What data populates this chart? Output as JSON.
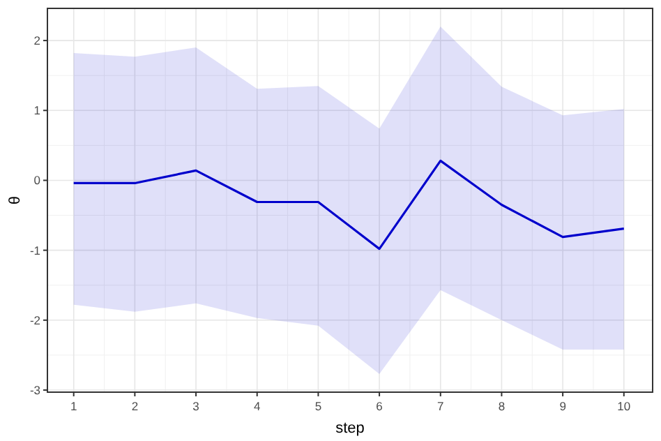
{
  "chart_data": {
    "type": "line",
    "xlabel": "step",
    "ylabel": "θ",
    "x": [
      1,
      2,
      3,
      4,
      5,
      6,
      7,
      8,
      9,
      10
    ],
    "series": [
      {
        "color": "#0000cc",
        "values": [
          -0.04,
          -0.04,
          0.14,
          -0.31,
          -0.31,
          -0.98,
          0.28,
          -0.35,
          -0.81,
          -0.69
        ],
        "lower": [
          -1.78,
          -1.88,
          -1.76,
          -1.97,
          -2.08,
          -2.77,
          -1.57,
          -2.0,
          -2.42,
          -2.42
        ],
        "upper": [
          1.82,
          1.77,
          1.9,
          1.31,
          1.35,
          0.74,
          2.2,
          1.34,
          0.93,
          1.02
        ]
      }
    ],
    "xlim": [
      0.57,
      10.47
    ],
    "xticks": [
      1,
      2,
      3,
      4,
      5,
      6,
      7,
      8,
      9,
      10
    ],
    "ylim": [
      -3.03,
      2.46
    ],
    "yticks": [
      -3,
      -2,
      -1,
      0,
      1,
      2
    ],
    "grid": true
  }
}
